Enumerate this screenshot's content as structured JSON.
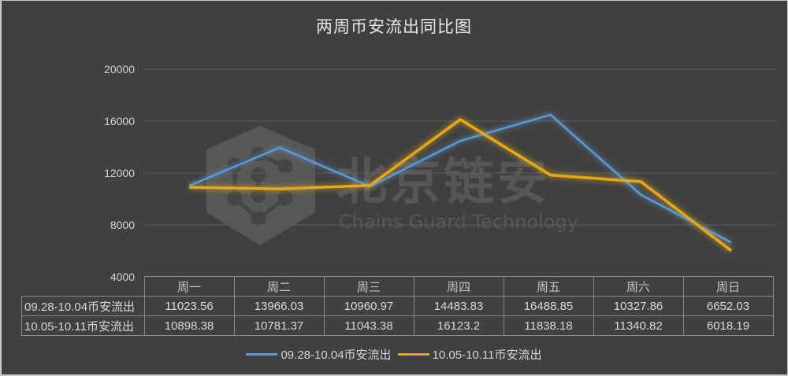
{
  "chart_data": {
    "type": "line",
    "title": "两周币安流出同比图",
    "xlabel": "",
    "ylabel": "",
    "categories": [
      "周一",
      "周二",
      "周三",
      "周四",
      "周五",
      "周六",
      "周日"
    ],
    "series": [
      {
        "name": "09.28-10.04币安流出",
        "color": "#5b9bd5",
        "values": [
          11023.56,
          13966.03,
          10960.97,
          14483.83,
          16488.85,
          10327.86,
          6652.03
        ]
      },
      {
        "name": "10.05-10.11币安流出",
        "color": "#e6a817",
        "values": [
          10898.38,
          10781.37,
          11043.38,
          16123.2,
          11838.18,
          11340.82,
          6018.19
        ]
      }
    ],
    "ylim": [
      4000,
      20000
    ],
    "yticks": [
      4000,
      8000,
      12000,
      16000,
      20000
    ],
    "grid": true,
    "legend_position": "bottom",
    "data_table": true
  },
  "title": "两周币安流出同比图",
  "yticks": [
    "20000",
    "16000",
    "12000",
    "8000",
    "4000"
  ],
  "table": {
    "headers": [
      "周一",
      "周二",
      "周三",
      "周四",
      "周五",
      "周六",
      "周日"
    ],
    "rows": [
      {
        "label": "09.28-10.04币安流出",
        "values": [
          "11023.56",
          "13966.03",
          "10960.97",
          "14483.83",
          "16488.85",
          "10327.86",
          "6652.03"
        ]
      },
      {
        "label": "10.05-10.11币安流出",
        "values": [
          "10898.38",
          "10781.37",
          "11043.38",
          "16123.2",
          "11838.18",
          "11340.82",
          "6018.19"
        ]
      }
    ]
  },
  "legend": [
    {
      "label": "09.28-10.04币安流出",
      "color": "#5b9bd5"
    },
    {
      "label": "10.05-10.11币安流出",
      "color": "#e6a817"
    }
  ],
  "watermark": {
    "cn": "北京链安",
    "en": "Chains Guard Technology"
  }
}
